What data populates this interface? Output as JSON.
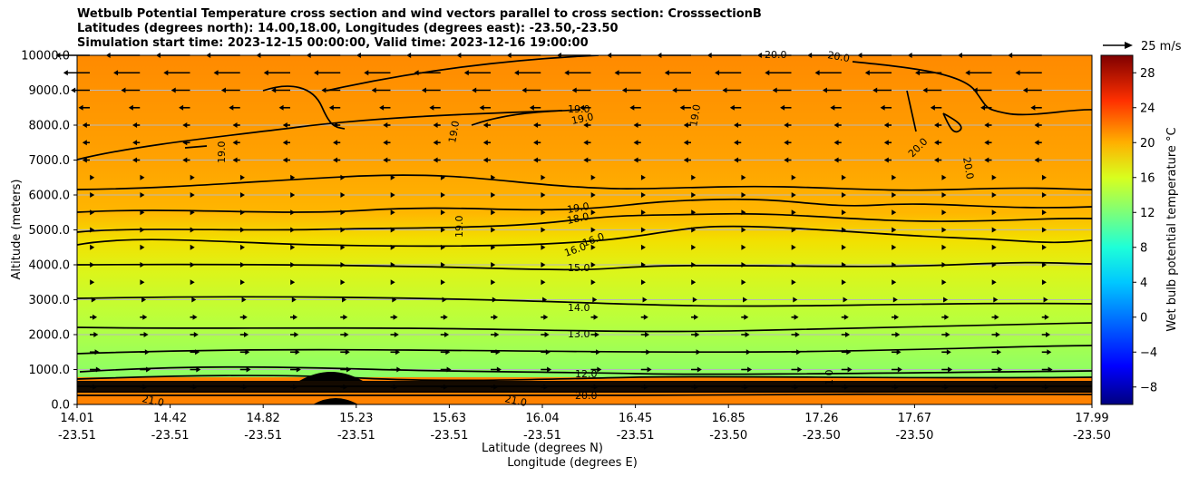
{
  "figure": {
    "title_lines": [
      "Wetbulb Potential Temperature cross section and wind vectors parallel to cross section: CrosssectionB",
      "Latitudes (degrees north): 14.00,18.00, Longitudes (degrees east): -23.50,-23.50",
      "Simulation start time: 2023-12-15 00:00:00, Valid time: 2023-12-16 19:00:00"
    ],
    "quiver_key_label": "25 m/s"
  },
  "chart_data": {
    "type": "heatmap",
    "xlabel_lines": [
      "Latitude (degrees N)",
      "Longitude (degrees E)"
    ],
    "ylabel": "Altitude (meters)",
    "ylim": [
      0,
      10000
    ],
    "y_ticks": [
      "0.0",
      "1000.0",
      "2000.0",
      "3000.0",
      "4000.0",
      "5000.0",
      "6000.0",
      "7000.0",
      "8000.0",
      "9000.0",
      "10000.0"
    ],
    "x_ticks": [
      {
        "lat": "14.01",
        "lon": "-23.51"
      },
      {
        "lat": "14.42",
        "lon": "-23.51"
      },
      {
        "lat": "14.82",
        "lon": "-23.51"
      },
      {
        "lat": "15.23",
        "lon": "-23.51"
      },
      {
        "lat": "15.63",
        "lon": "-23.51"
      },
      {
        "lat": "16.04",
        "lon": "-23.51"
      },
      {
        "lat": "16.45",
        "lon": "-23.51"
      },
      {
        "lat": "16.85",
        "lon": "-23.50"
      },
      {
        "lat": "17.26",
        "lon": "-23.50"
      },
      {
        "lat": "17.67",
        "lon": "-23.50"
      },
      {
        "lat": "17.99",
        "lon": "-23.50"
      }
    ],
    "grid": "horizontal",
    "colorbar": {
      "label": "Wet bulb potential temperature °C",
      "range": [
        -10,
        30
      ],
      "ticks": [
        "−8",
        "−4",
        "0",
        "4",
        "8",
        "12",
        "16",
        "20",
        "24",
        "28"
      ]
    },
    "field_layers": [
      {
        "altitude_range": [
          0,
          500
        ],
        "value": 21
      },
      {
        "altitude_range": [
          500,
          900
        ],
        "value": 12
      },
      {
        "altitude_range": [
          900,
          2000
        ],
        "value": 13
      },
      {
        "altitude_range": [
          2000,
          3000
        ],
        "value": 14
      },
      {
        "altitude_range": [
          3000,
          4000
        ],
        "value": 15
      },
      {
        "altitude_range": [
          4000,
          4700
        ],
        "value": 16
      },
      {
        "altitude_range": [
          4700,
          5300
        ],
        "value": 18
      },
      {
        "altitude_range": [
          5300,
          6200
        ],
        "value": 19
      },
      {
        "altitude_range": [
          6200,
          10000
        ],
        "value": 20
      }
    ],
    "contour_labels": [
      "21.0",
      "20.0",
      "12.0",
      "13.0",
      "14.0",
      "15.0",
      "16.0",
      "18.0",
      "19.0",
      "20.0",
      "1.0"
    ],
    "colors": {
      "warm": "#ff8c00",
      "mid": "#ffb400",
      "cool": "#b4ff3c",
      "low": "#8cff64",
      "contour": "#000000"
    }
  }
}
